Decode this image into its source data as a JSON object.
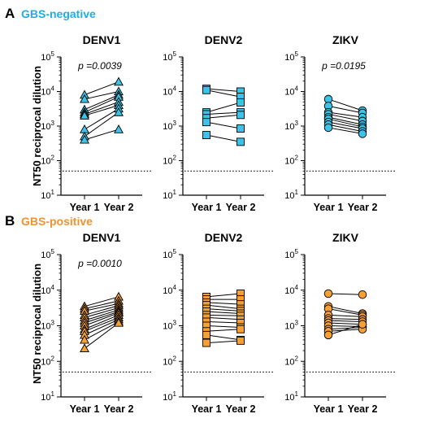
{
  "rows": [
    {
      "panel_label": "A",
      "title": "GBS-negative",
      "title_color": "#1eaee0",
      "marker_fill": "#3cc4e8"
    },
    {
      "panel_label": "B",
      "title": "GBS-positive",
      "title_color": "#f0932e",
      "marker_fill": "#f5a035"
    }
  ],
  "ylabel": "NT50 reciprocal dilution",
  "chart_data": [
    {
      "type": "line",
      "row": "GBS-negative",
      "title": "DENV1",
      "marker": "triangle",
      "categories": [
        "Year 1",
        "Year 2"
      ],
      "yscale": "log",
      "ylim": [
        10,
        100000
      ],
      "yticks": [
        "10^1",
        "10^2",
        "10^3",
        "10^4",
        "10^5"
      ],
      "threshold": 50,
      "annotation": "p =0.0039",
      "pairs": [
        [
          8000,
          19000
        ],
        [
          6000,
          10000
        ],
        [
          3000,
          8000
        ],
        [
          2500,
          7000
        ],
        [
          2200,
          5000
        ],
        [
          2000,
          4000
        ],
        [
          800,
          3200
        ],
        [
          500,
          2500
        ],
        [
          400,
          800
        ]
      ]
    },
    {
      "type": "line",
      "row": "GBS-negative",
      "title": "DENV2",
      "marker": "square",
      "categories": [
        "Year 1",
        "Year 2"
      ],
      "yscale": "log",
      "ylim": [
        10,
        100000
      ],
      "yticks": [
        "10^1",
        "10^2",
        "10^3",
        "10^4",
        "10^5"
      ],
      "threshold": 50,
      "annotation": "",
      "pairs": [
        [
          12000,
          10000
        ],
        [
          11000,
          7000
        ],
        [
          2500,
          4800
        ],
        [
          2200,
          2500
        ],
        [
          1700,
          2100
        ],
        [
          1300,
          850
        ],
        [
          550,
          350
        ]
      ]
    },
    {
      "type": "line",
      "row": "GBS-negative",
      "title": "ZIKV",
      "marker": "circle",
      "categories": [
        "Year 1",
        "Year 2"
      ],
      "yscale": "log",
      "ylim": [
        10,
        100000
      ],
      "yticks": [
        "10^1",
        "10^2",
        "10^3",
        "10^4",
        "10^5"
      ],
      "threshold": 50,
      "annotation": "p =0.0195",
      "pairs": [
        [
          6000,
          2800
        ],
        [
          3800,
          2400
        ],
        [
          2500,
          1800
        ],
        [
          2200,
          1400
        ],
        [
          1800,
          1100
        ],
        [
          1600,
          950
        ],
        [
          1300,
          850
        ],
        [
          1100,
          700
        ],
        [
          900,
          600
        ]
      ]
    },
    {
      "type": "line",
      "row": "GBS-positive",
      "title": "DENV1",
      "marker": "triangle",
      "categories": [
        "Year 1",
        "Year 2"
      ],
      "yscale": "log",
      "ylim": [
        10,
        100000
      ],
      "yticks": [
        "10^1",
        "10^2",
        "10^3",
        "10^4",
        "10^5"
      ],
      "threshold": 50,
      "annotation": "p =0.0010",
      "pairs": [
        [
          3500,
          6500
        ],
        [
          3000,
          5000
        ],
        [
          2600,
          4200
        ],
        [
          2000,
          3700
        ],
        [
          1700,
          3200
        ],
        [
          1400,
          2800
        ],
        [
          1200,
          2500
        ],
        [
          1000,
          2300
        ],
        [
          800,
          2000
        ],
        [
          700,
          1700
        ],
        [
          550,
          1500
        ],
        [
          400,
          1300
        ],
        [
          230,
          1200
        ]
      ]
    },
    {
      "type": "line",
      "row": "GBS-positive",
      "title": "DENV2",
      "marker": "square",
      "categories": [
        "Year 1",
        "Year 2"
      ],
      "yscale": "log",
      "ylim": [
        10,
        100000
      ],
      "yticks": [
        "10^1",
        "10^2",
        "10^3",
        "10^4",
        "10^5"
      ],
      "threshold": 50,
      "annotation": "",
      "pairs": [
        [
          6500,
          8000
        ],
        [
          5500,
          5500
        ],
        [
          4500,
          4000
        ],
        [
          3800,
          3000
        ],
        [
          3000,
          2600
        ],
        [
          2500,
          2200
        ],
        [
          2000,
          1900
        ],
        [
          1700,
          1500
        ],
        [
          1300,
          1200
        ],
        [
          1000,
          900
        ],
        [
          700,
          800
        ],
        [
          550,
          400
        ],
        [
          330,
          380
        ]
      ]
    },
    {
      "type": "line",
      "row": "GBS-positive",
      "title": "ZIKV",
      "marker": "circle",
      "categories": [
        "Year 1",
        "Year 2"
      ],
      "yscale": "log",
      "ylim": [
        10,
        100000
      ],
      "yticks": [
        "10^1",
        "10^2",
        "10^3",
        "10^4",
        "10^5"
      ],
      "threshold": 50,
      "annotation": "",
      "pairs": [
        [
          8000,
          7500
        ],
        [
          3500,
          2200
        ],
        [
          3000,
          2000
        ],
        [
          2000,
          1800
        ],
        [
          1600,
          1500
        ],
        [
          1400,
          1300
        ],
        [
          1200,
          1100
        ],
        [
          1000,
          950
        ],
        [
          800,
          900
        ],
        [
          700,
          800
        ],
        [
          550,
          1100
        ]
      ]
    }
  ]
}
